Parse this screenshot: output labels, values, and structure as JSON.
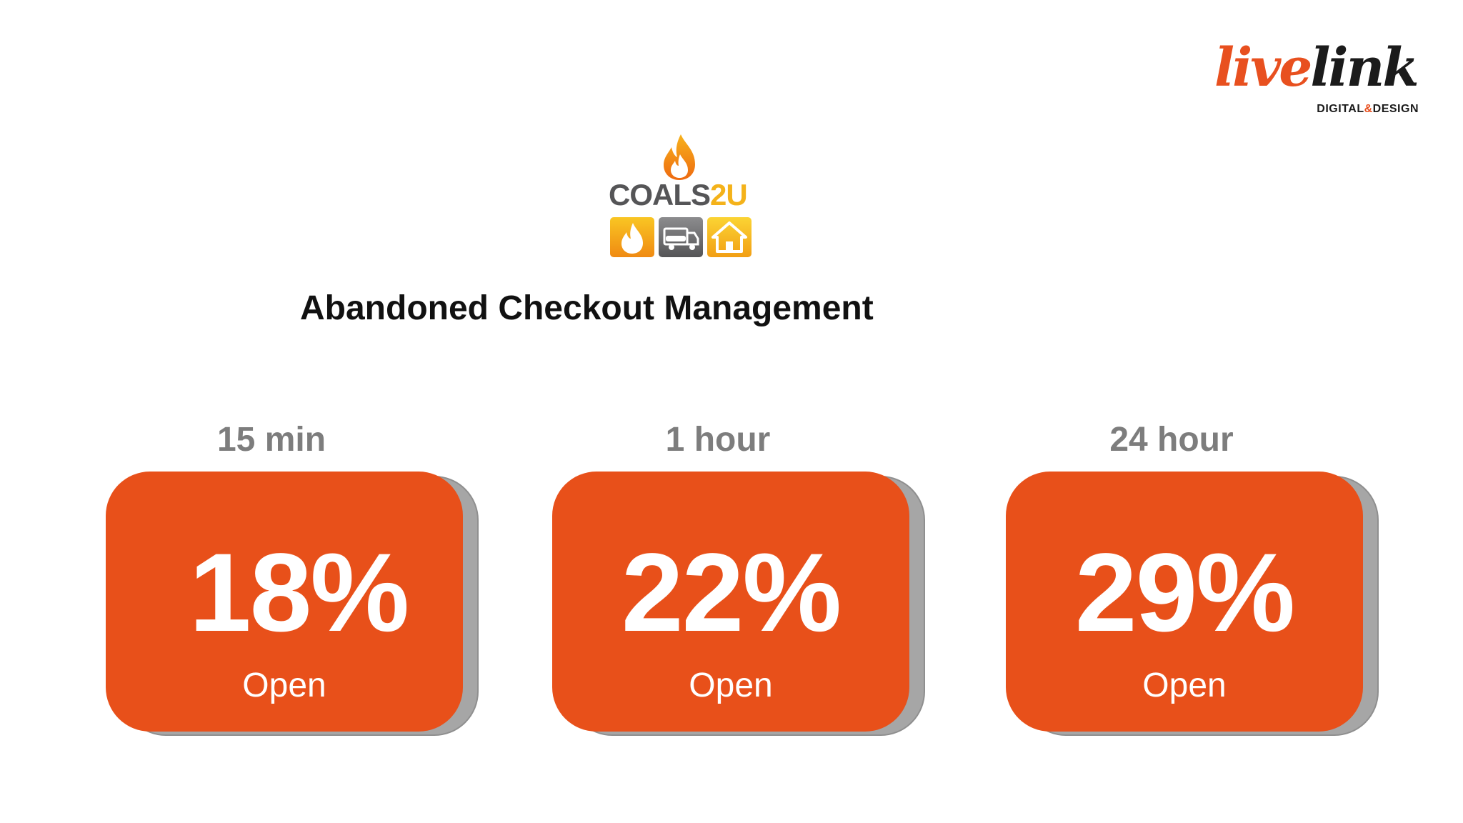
{
  "branding": {
    "agency_logo": {
      "word_1": "live",
      "word_2": "link",
      "tagline_part_1": "DIGITAL",
      "tagline_amp": "&",
      "tagline_part_2": "DESIGN",
      "colors": {
        "accent": "#e8501f",
        "dark": "#1b1b1b"
      }
    },
    "client_logo": {
      "word_1": "COALS",
      "word_2": "2U",
      "icons": [
        "flame-icon",
        "truck-icon",
        "house-icon"
      ],
      "colors": {
        "grey": "#555557",
        "yellow": "#f4b21a"
      }
    }
  },
  "title": "Abandoned Checkout Management",
  "stats": [
    {
      "period": "15 min",
      "value": "18%",
      "label": "Open"
    },
    {
      "period": "1 hour",
      "value": "22%",
      "label": "Open"
    },
    {
      "period": "24 hour",
      "value": "29%",
      "label": "Open"
    }
  ],
  "colors": {
    "card": "#e8501a",
    "card_shadow": "#a6a6a6",
    "period_text": "#7d7d7d",
    "title_text": "#111111"
  }
}
